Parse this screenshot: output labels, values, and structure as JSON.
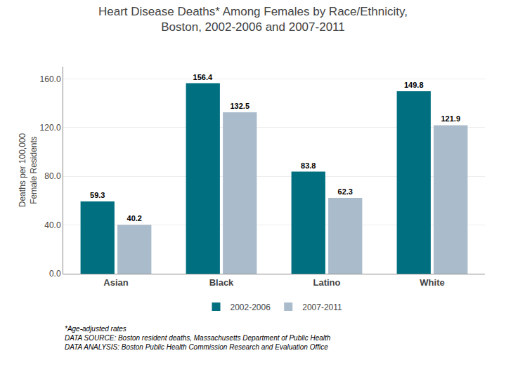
{
  "chart_data": {
    "type": "bar",
    "title": "Heart Disease Deaths* Among Females by Race/Ethnicity,\nBoston, 2002-2006 and 2007-2011",
    "categories": [
      "Asian",
      "Black",
      "Latino",
      "White"
    ],
    "series": [
      {
        "name": "2002-2006",
        "color": "#007080",
        "values": [
          59.3,
          156.4,
          83.8,
          149.8
        ]
      },
      {
        "name": "2007-2011",
        "color": "#aabbcc",
        "values": [
          40.2,
          132.5,
          62.3,
          121.9
        ]
      }
    ],
    "ylabel": "Deaths per 100,000\nFemale Residents",
    "ylim": [
      0,
      170
    ],
    "yticks": [
      {
        "value": 0,
        "label": "0.0"
      },
      {
        "value": 40,
        "label": "40.0"
      },
      {
        "value": 80,
        "label": "80.0"
      },
      {
        "value": 120,
        "label": "120.0"
      },
      {
        "value": 160,
        "label": "160.0"
      }
    ],
    "annotations": [
      "*Age-adjusted rates",
      "DATA SOURCE: Boston resident deaths, Massachusetts Department of Public Health",
      "DATA ANALYSIS: Boston Public Health Commission Research and Evaluation Office"
    ],
    "data_labels": true,
    "grid": true,
    "legend": "bottom"
  }
}
